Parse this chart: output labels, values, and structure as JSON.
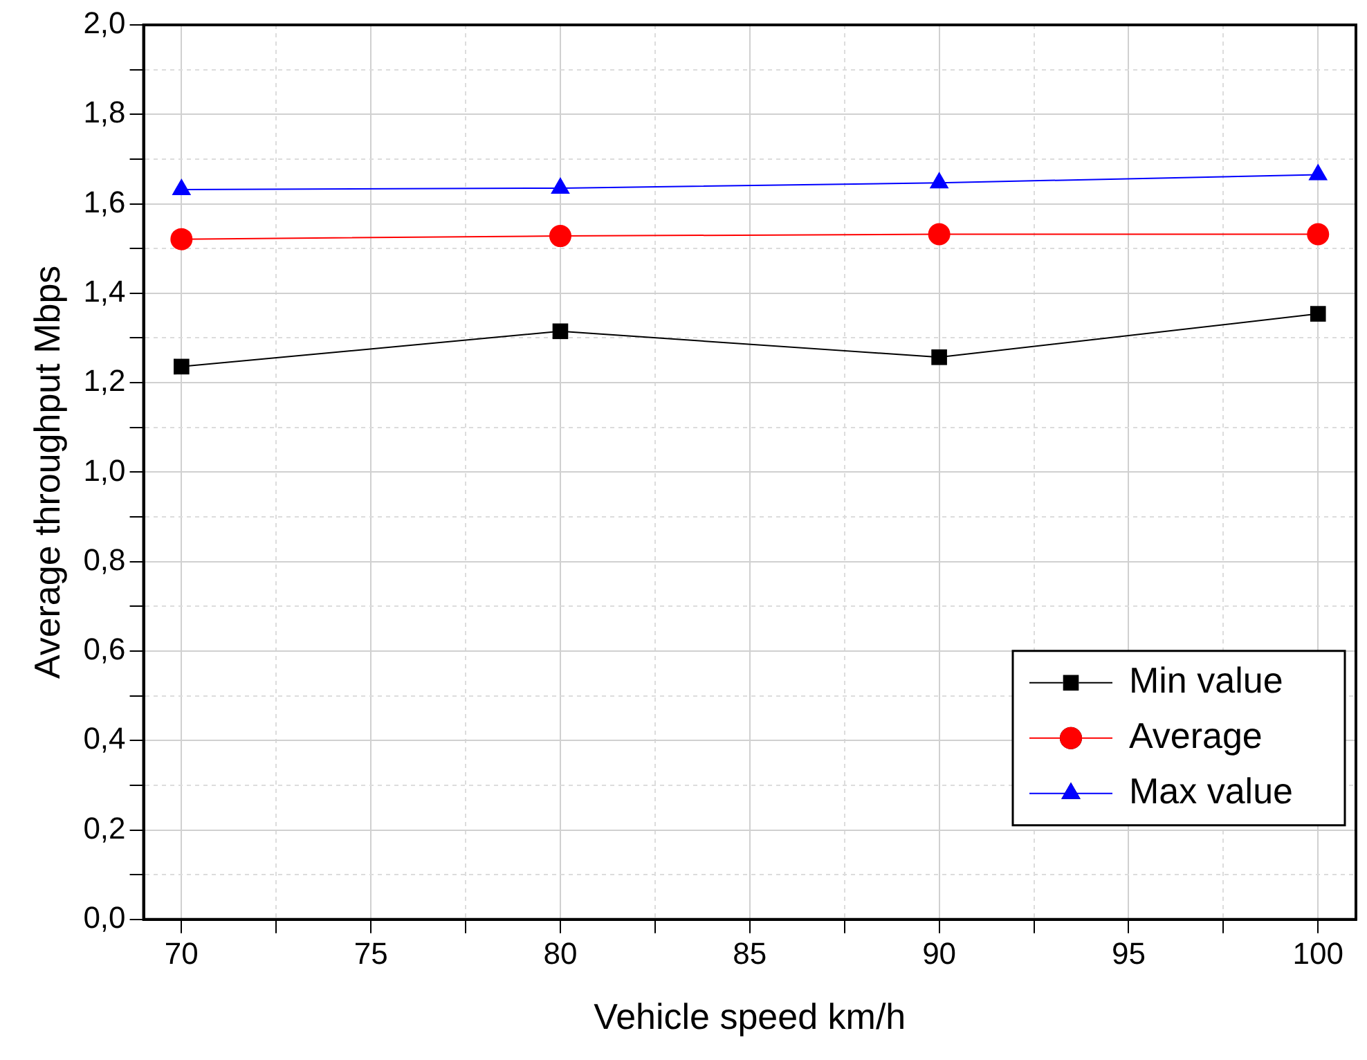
{
  "chart_data": {
    "type": "line",
    "xlabel": "Vehicle speed km/h",
    "ylabel": "Average throughput Mbps",
    "x": [
      70,
      80,
      90,
      100
    ],
    "series": [
      {
        "name": "Min value",
        "color": "#000000",
        "marker": "square",
        "values": [
          1.236,
          1.315,
          1.257,
          1.354
        ]
      },
      {
        "name": "Average",
        "color": "#ff0000",
        "marker": "circle",
        "values": [
          1.521,
          1.528,
          1.532,
          1.532
        ]
      },
      {
        "name": "Max value",
        "color": "#0000ff",
        "marker": "triangle",
        "values": [
          1.632,
          1.635,
          1.647,
          1.665
        ]
      }
    ],
    "xlim": [
      69,
      101
    ],
    "xticks": [
      70,
      {
        "value": 72.5,
        "label": null
      },
      75,
      {
        "value": 77.5,
        "label": null
      },
      80,
      {
        "value": 82.5,
        "label": null
      },
      85,
      {
        "value": 87.5,
        "label": null
      },
      90,
      {
        "value": 92.5,
        "label": null
      },
      95,
      {
        "value": 97.5,
        "label": null
      },
      100
    ],
    "ylim": [
      0,
      2
    ],
    "yticks": [
      {
        "value": 0,
        "label": "0,0"
      },
      {
        "value": 0.1,
        "label": null
      },
      {
        "value": 0.2,
        "label": "0,2"
      },
      {
        "value": 0.3,
        "label": null
      },
      {
        "value": 0.4,
        "label": "0,4"
      },
      {
        "value": 0.5,
        "label": null
      },
      {
        "value": 0.6,
        "label": "0,6"
      },
      {
        "value": 0.7,
        "label": null
      },
      {
        "value": 0.8,
        "label": "0,8"
      },
      {
        "value": 0.9,
        "label": null
      },
      {
        "value": 1,
        "label": "1,0"
      },
      {
        "value": 1.1,
        "label": null
      },
      {
        "value": 1.2,
        "label": "1,2"
      },
      {
        "value": 1.3,
        "label": null
      },
      {
        "value": 1.4,
        "label": "1,4"
      },
      {
        "value": 1.5,
        "label": null
      },
      {
        "value": 1.6,
        "label": "1,6"
      },
      {
        "value": 1.7,
        "label": null
      },
      {
        "value": 1.8,
        "label": "1,8"
      },
      {
        "value": 1.9,
        "label": null
      },
      {
        "value": 2,
        "label": "2,0"
      }
    ],
    "grid": true,
    "legend": "bottom right",
    "line_style": "solid"
  }
}
